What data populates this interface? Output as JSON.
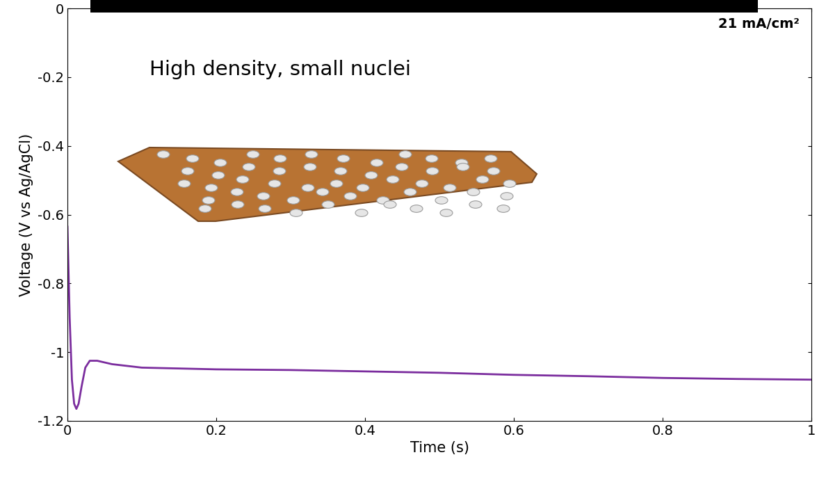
{
  "chart_data": {
    "type": "line",
    "x_label": "Time (s)",
    "y_label": "Voltage (V vs Ag/AgCl)",
    "annotations": [
      "High density, small nuclei",
      "21 mA/cm²"
    ],
    "x": [
      0,
      0.003,
      0.006,
      0.009,
      0.012,
      0.015,
      0.019,
      0.024,
      0.03,
      0.04,
      0.06,
      0.1,
      0.2,
      0.3,
      0.4,
      0.5,
      0.6,
      0.7,
      0.8,
      0.9,
      1.0
    ],
    "values": [
      -0.635,
      -0.9,
      -1.08,
      -1.15,
      -1.165,
      -1.15,
      -1.1,
      -1.045,
      -1.025,
      -1.025,
      -1.035,
      -1.045,
      -1.05,
      -1.052,
      -1.056,
      -1.06,
      -1.066,
      -1.07,
      -1.075,
      -1.078,
      -1.08
    ],
    "color": "#7b2d9e",
    "xlim": [
      0,
      1
    ],
    "xticks": [
      0,
      0.2,
      0.4,
      0.6,
      0.8,
      1
    ],
    "ylim": [
      -1.2,
      0
    ],
    "yticks": [
      -1.2,
      -1,
      -0.8,
      -0.6,
      -0.4,
      -0.2,
      0
    ],
    "grid": false
  }
}
